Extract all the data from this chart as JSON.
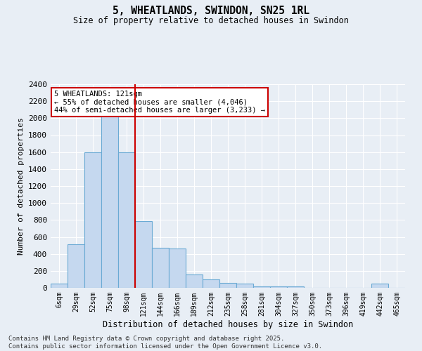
{
  "title": "5, WHEATLANDS, SWINDON, SN25 1RL",
  "subtitle": "Size of property relative to detached houses in Swindon",
  "xlabel": "Distribution of detached houses by size in Swindon",
  "ylabel": "Number of detached properties",
  "footer_line1": "Contains HM Land Registry data © Crown copyright and database right 2025.",
  "footer_line2": "Contains public sector information licensed under the Open Government Licence v3.0.",
  "categories": [
    "6sqm",
    "29sqm",
    "52sqm",
    "75sqm",
    "98sqm",
    "121sqm",
    "144sqm",
    "166sqm",
    "189sqm",
    "212sqm",
    "235sqm",
    "258sqm",
    "281sqm",
    "304sqm",
    "327sqm",
    "350sqm",
    "373sqm",
    "396sqm",
    "419sqm",
    "442sqm",
    "465sqm"
  ],
  "values": [
    50,
    510,
    1600,
    2050,
    1600,
    790,
    470,
    460,
    160,
    100,
    60,
    50,
    20,
    20,
    20,
    0,
    0,
    0,
    0,
    50,
    0
  ],
  "bar_color": "#c5d8ef",
  "bar_edge_color": "#6aaad4",
  "background_color": "#e8eef5",
  "grid_color": "#ffffff",
  "vline_x_index": 4,
  "vline_color": "#cc0000",
  "annotation_text": "5 WHEATLANDS: 121sqm\n← 55% of detached houses are smaller (4,046)\n44% of semi-detached houses are larger (3,233) →",
  "annotation_box_color": "#ffffff",
  "annotation_box_edge": "#cc0000",
  "ylim": [
    0,
    2400
  ],
  "yticks": [
    0,
    200,
    400,
    600,
    800,
    1000,
    1200,
    1400,
    1600,
    1800,
    2000,
    2200,
    2400
  ]
}
